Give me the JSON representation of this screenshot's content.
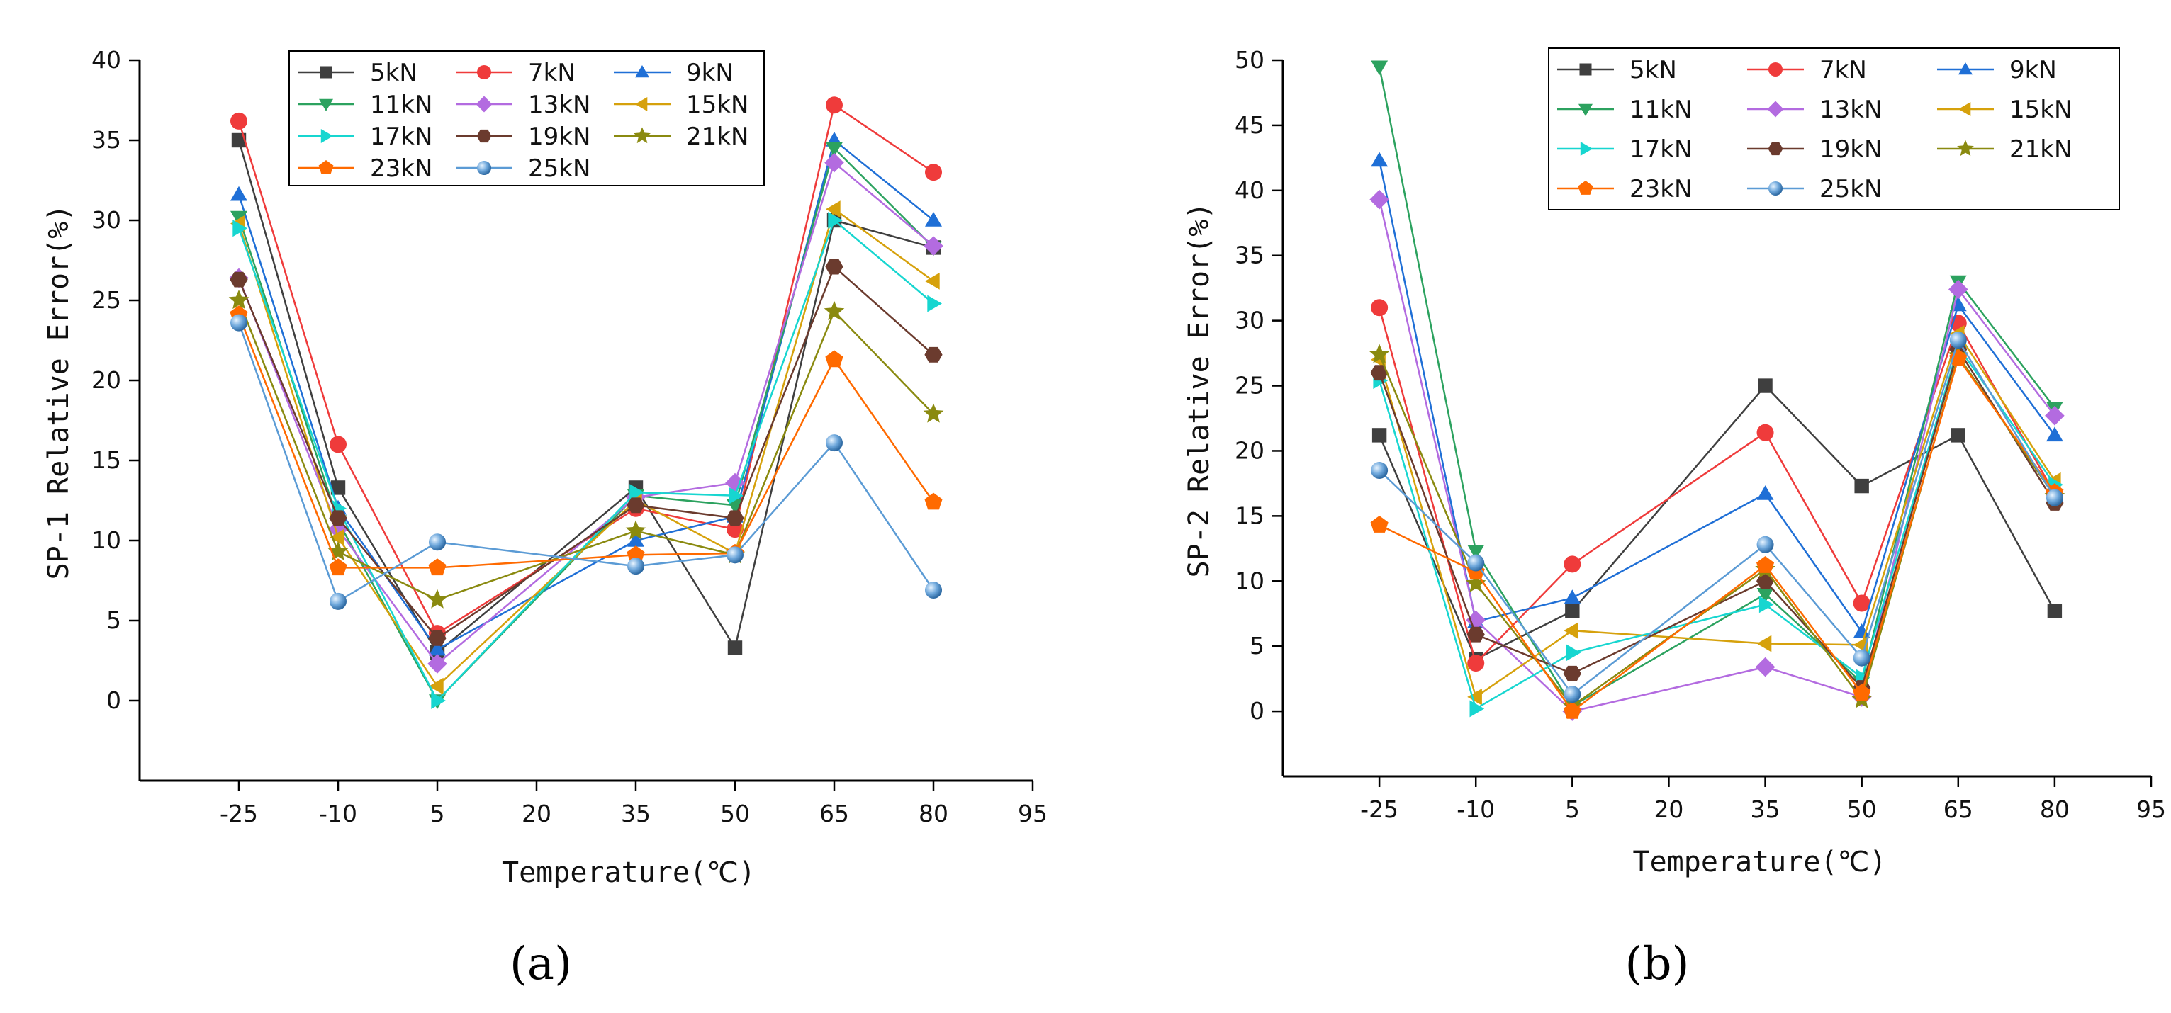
{
  "chart_data": [
    {
      "type": "line",
      "panel_label": "(a)",
      "xlabel": "Temperature(℃)",
      "ylabel": "SP-1 Relative Error(%)",
      "x_ticks": [
        -25,
        -10,
        5,
        20,
        35,
        50,
        65,
        80,
        95
      ],
      "y_ticks": [
        0,
        5,
        10,
        15,
        20,
        25,
        30,
        35,
        40
      ],
      "xlim": [
        -40,
        95
      ],
      "ylim": [
        -5,
        40
      ],
      "legend_position": "top-center",
      "x": [
        -25,
        -10,
        5,
        35,
        50,
        65,
        80
      ],
      "series": [
        {
          "name": "5kN",
          "color": "#3f3f3f",
          "marker": "square",
          "values": [
            35.0,
            13.3,
            3.0,
            13.3,
            3.3,
            30.0,
            28.3
          ]
        },
        {
          "name": "7kN",
          "color": "#ef3b3b",
          "marker": "circle",
          "values": [
            36.2,
            16.0,
            4.2,
            12.0,
            10.7,
            37.2,
            33.0
          ]
        },
        {
          "name": "9kN",
          "color": "#1f6fd6",
          "marker": "triangle",
          "values": [
            31.6,
            12.0,
            3.2,
            10.0,
            11.5,
            35.0,
            30.0
          ]
        },
        {
          "name": "11kN",
          "color": "#2ca25f",
          "marker": "tri-down",
          "values": [
            30.2,
            11.2,
            0.0,
            12.8,
            12.2,
            34.5,
            28.3
          ]
        },
        {
          "name": "13kN",
          "color": "#b36be0",
          "marker": "diamond",
          "values": [
            26.4,
            10.7,
            2.3,
            12.7,
            13.6,
            33.6,
            28.4
          ]
        },
        {
          "name": "15kN",
          "color": "#d6a10c",
          "marker": "tri-left",
          "values": [
            29.8,
            10.2,
            0.9,
            12.5,
            9.2,
            30.7,
            26.2
          ]
        },
        {
          "name": "17kN",
          "color": "#17d6d0",
          "marker": "tri-right",
          "values": [
            29.5,
            12.0,
            0.0,
            13.0,
            12.8,
            30.0,
            24.8
          ]
        },
        {
          "name": "19kN",
          "color": "#6b3b2e",
          "marker": "hexagon",
          "values": [
            26.3,
            11.4,
            3.9,
            12.2,
            11.4,
            27.1,
            21.6
          ]
        },
        {
          "name": "21kN",
          "color": "#8a8a10",
          "marker": "star",
          "values": [
            25.0,
            9.3,
            6.3,
            10.6,
            9.1,
            24.3,
            17.9
          ]
        },
        {
          "name": "23kN",
          "color": "#ff6a00",
          "marker": "pentagon",
          "values": [
            24.1,
            8.3,
            8.3,
            9.1,
            9.2,
            21.3,
            12.4
          ]
        },
        {
          "name": "25kN",
          "color": "#5b9bd5",
          "marker": "sphere",
          "values": [
            23.6,
            6.2,
            9.9,
            8.4,
            9.1,
            16.1,
            6.9
          ]
        }
      ]
    },
    {
      "type": "line",
      "panel_label": "(b)",
      "xlabel": "Temperature(℃)",
      "ylabel": "SP-2 Relative Error(%)",
      "x_ticks": [
        -25,
        -10,
        5,
        20,
        35,
        50,
        65,
        80,
        95
      ],
      "y_ticks": [
        0,
        5,
        10,
        15,
        20,
        25,
        30,
        35,
        40,
        45,
        50
      ],
      "xlim": [
        -40,
        95
      ],
      "ylim": [
        -5,
        50
      ],
      "legend_position": "top-right",
      "x": [
        -25,
        -10,
        5,
        35,
        50,
        65,
        80
      ],
      "series": [
        {
          "name": "5kN",
          "color": "#3f3f3f",
          "marker": "square",
          "values": [
            21.2,
            4.0,
            7.7,
            25.0,
            17.3,
            21.2,
            7.7
          ]
        },
        {
          "name": "7kN",
          "color": "#ef3b3b",
          "marker": "circle",
          "values": [
            31.0,
            3.7,
            11.3,
            21.4,
            8.3,
            29.8,
            16.7
          ]
        },
        {
          "name": "9kN",
          "color": "#1f6fd6",
          "marker": "triangle",
          "values": [
            42.3,
            6.9,
            8.7,
            16.7,
            6.1,
            31.2,
            21.2
          ]
        },
        {
          "name": "11kN",
          "color": "#2ca25f",
          "marker": "tri-down",
          "values": [
            49.5,
            12.3,
            0.4,
            9.0,
            2.2,
            33.0,
            23.3
          ]
        },
        {
          "name": "13kN",
          "color": "#b36be0",
          "marker": "diamond",
          "values": [
            39.3,
            7.0,
            0.0,
            3.4,
            1.1,
            32.4,
            22.7
          ]
        },
        {
          "name": "15kN",
          "color": "#d6a10c",
          "marker": "tri-left",
          "values": [
            27.0,
            1.1,
            6.2,
            5.2,
            5.1,
            29.0,
            17.7
          ]
        },
        {
          "name": "17kN",
          "color": "#17d6d0",
          "marker": "tri-right",
          "values": [
            25.4,
            0.2,
            4.5,
            8.2,
            2.6,
            28.0,
            17.4
          ]
        },
        {
          "name": "19kN",
          "color": "#6b3b2e",
          "marker": "hexagon",
          "values": [
            26.0,
            5.9,
            2.9,
            10.0,
            1.8,
            27.8,
            16.0
          ]
        },
        {
          "name": "21kN",
          "color": "#8a8a10",
          "marker": "star",
          "values": [
            27.4,
            9.8,
            0.4,
            10.9,
            0.9,
            27.3,
            16.5
          ]
        },
        {
          "name": "23kN",
          "color": "#ff6a00",
          "marker": "pentagon",
          "values": [
            14.3,
            10.7,
            0.0,
            11.2,
            1.4,
            27.1,
            16.8
          ]
        },
        {
          "name": "25kN",
          "color": "#5b9bd5",
          "marker": "sphere",
          "values": [
            18.5,
            11.4,
            1.3,
            12.8,
            4.1,
            28.5,
            16.4
          ]
        }
      ]
    }
  ]
}
